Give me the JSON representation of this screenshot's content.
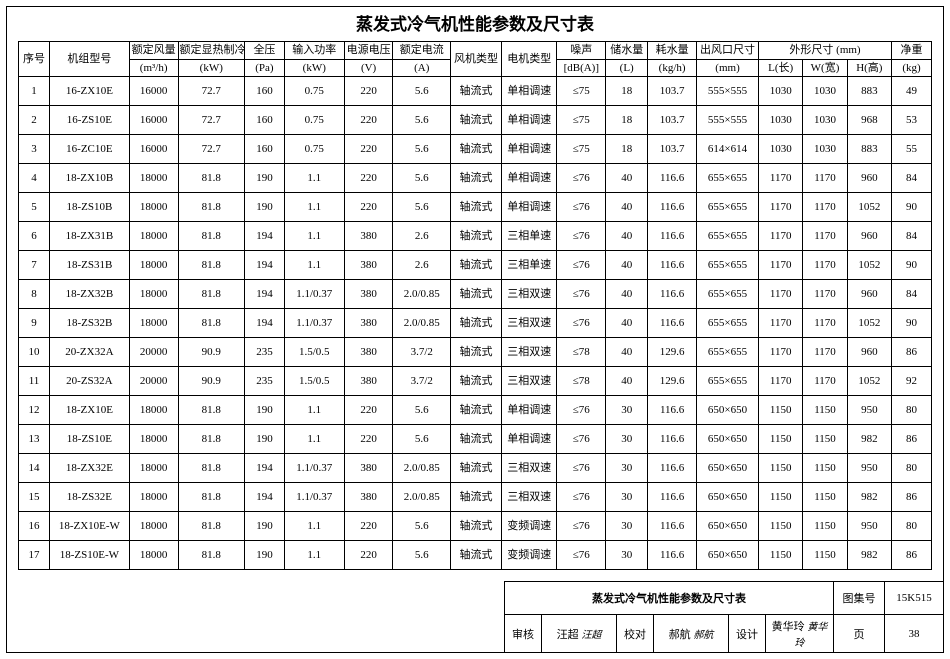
{
  "title": "蒸发式冷气机性能参数及尺寸表",
  "headers": {
    "seq": "序号",
    "model": "机组型号",
    "airflow": "额定风量",
    "airflow_unit": "(m³/h)",
    "cooling": "额定显热制冷量",
    "cooling_unit": "(kW)",
    "pressure": "全压",
    "pressure_unit": "(Pa)",
    "power": "输入功率",
    "power_unit": "(kW)",
    "voltage": "电源电压",
    "voltage_unit": "(V)",
    "current": "额定电流",
    "current_unit": "(A)",
    "fan_type": "风机类型",
    "motor_type": "电机类型",
    "noise": "噪声",
    "noise_unit": "[dB(A)]",
    "water_store": "储水量",
    "water_store_unit": "(L)",
    "water_use": "耗水量",
    "water_use_unit": "(kg/h)",
    "outlet": "出风口尺寸",
    "outlet_unit": "(mm)",
    "dims": "外形尺寸 (mm)",
    "L": "L(长)",
    "W": "W(宽)",
    "H": "H(高)",
    "weight": "净重",
    "weight_unit": "(kg)"
  },
  "rows": [
    {
      "seq": "1",
      "model": "16-ZX10E",
      "airflow": "16000",
      "cooling": "72.7",
      "pressure": "160",
      "power": "0.75",
      "voltage": "220",
      "current": "5.6",
      "fan": "轴流式",
      "motor": "单相调速",
      "noise": "≤75",
      "wstore": "18",
      "wuse": "103.7",
      "outlet": "555×555",
      "L": "1030",
      "W": "1030",
      "H": "883",
      "wt": "49"
    },
    {
      "seq": "2",
      "model": "16-ZS10E",
      "airflow": "16000",
      "cooling": "72.7",
      "pressure": "160",
      "power": "0.75",
      "voltage": "220",
      "current": "5.6",
      "fan": "轴流式",
      "motor": "单相调速",
      "noise": "≤75",
      "wstore": "18",
      "wuse": "103.7",
      "outlet": "555×555",
      "L": "1030",
      "W": "1030",
      "H": "968",
      "wt": "53"
    },
    {
      "seq": "3",
      "model": "16-ZC10E",
      "airflow": "16000",
      "cooling": "72.7",
      "pressure": "160",
      "power": "0.75",
      "voltage": "220",
      "current": "5.6",
      "fan": "轴流式",
      "motor": "单相调速",
      "noise": "≤75",
      "wstore": "18",
      "wuse": "103.7",
      "outlet": "614×614",
      "L": "1030",
      "W": "1030",
      "H": "883",
      "wt": "55"
    },
    {
      "seq": "4",
      "model": "18-ZX10B",
      "airflow": "18000",
      "cooling": "81.8",
      "pressure": "190",
      "power": "1.1",
      "voltage": "220",
      "current": "5.6",
      "fan": "轴流式",
      "motor": "单相调速",
      "noise": "≤76",
      "wstore": "40",
      "wuse": "116.6",
      "outlet": "655×655",
      "L": "1170",
      "W": "1170",
      "H": "960",
      "wt": "84"
    },
    {
      "seq": "5",
      "model": "18-ZS10B",
      "airflow": "18000",
      "cooling": "81.8",
      "pressure": "190",
      "power": "1.1",
      "voltage": "220",
      "current": "5.6",
      "fan": "轴流式",
      "motor": "单相调速",
      "noise": "≤76",
      "wstore": "40",
      "wuse": "116.6",
      "outlet": "655×655",
      "L": "1170",
      "W": "1170",
      "H": "1052",
      "wt": "90"
    },
    {
      "seq": "6",
      "model": "18-ZX31B",
      "airflow": "18000",
      "cooling": "81.8",
      "pressure": "194",
      "power": "1.1",
      "voltage": "380",
      "current": "2.6",
      "fan": "轴流式",
      "motor": "三相单速",
      "noise": "≤76",
      "wstore": "40",
      "wuse": "116.6",
      "outlet": "655×655",
      "L": "1170",
      "W": "1170",
      "H": "960",
      "wt": "84"
    },
    {
      "seq": "7",
      "model": "18-ZS31B",
      "airflow": "18000",
      "cooling": "81.8",
      "pressure": "194",
      "power": "1.1",
      "voltage": "380",
      "current": "2.6",
      "fan": "轴流式",
      "motor": "三相单速",
      "noise": "≤76",
      "wstore": "40",
      "wuse": "116.6",
      "outlet": "655×655",
      "L": "1170",
      "W": "1170",
      "H": "1052",
      "wt": "90"
    },
    {
      "seq": "8",
      "model": "18-ZX32B",
      "airflow": "18000",
      "cooling": "81.8",
      "pressure": "194",
      "power": "1.1/0.37",
      "voltage": "380",
      "current": "2.0/0.85",
      "fan": "轴流式",
      "motor": "三相双速",
      "noise": "≤76",
      "wstore": "40",
      "wuse": "116.6",
      "outlet": "655×655",
      "L": "1170",
      "W": "1170",
      "H": "960",
      "wt": "84"
    },
    {
      "seq": "9",
      "model": "18-ZS32B",
      "airflow": "18000",
      "cooling": "81.8",
      "pressure": "194",
      "power": "1.1/0.37",
      "voltage": "380",
      "current": "2.0/0.85",
      "fan": "轴流式",
      "motor": "三相双速",
      "noise": "≤76",
      "wstore": "40",
      "wuse": "116.6",
      "outlet": "655×655",
      "L": "1170",
      "W": "1170",
      "H": "1052",
      "wt": "90"
    },
    {
      "seq": "10",
      "model": "20-ZX32A",
      "airflow": "20000",
      "cooling": "90.9",
      "pressure": "235",
      "power": "1.5/0.5",
      "voltage": "380",
      "current": "3.7/2",
      "fan": "轴流式",
      "motor": "三相双速",
      "noise": "≤78",
      "wstore": "40",
      "wuse": "129.6",
      "outlet": "655×655",
      "L": "1170",
      "W": "1170",
      "H": "960",
      "wt": "86"
    },
    {
      "seq": "11",
      "model": "20-ZS32A",
      "airflow": "20000",
      "cooling": "90.9",
      "pressure": "235",
      "power": "1.5/0.5",
      "voltage": "380",
      "current": "3.7/2",
      "fan": "轴流式",
      "motor": "三相双速",
      "noise": "≤78",
      "wstore": "40",
      "wuse": "129.6",
      "outlet": "655×655",
      "L": "1170",
      "W": "1170",
      "H": "1052",
      "wt": "92"
    },
    {
      "seq": "12",
      "model": "18-ZX10E",
      "airflow": "18000",
      "cooling": "81.8",
      "pressure": "190",
      "power": "1.1",
      "voltage": "220",
      "current": "5.6",
      "fan": "轴流式",
      "motor": "单相调速",
      "noise": "≤76",
      "wstore": "30",
      "wuse": "116.6",
      "outlet": "650×650",
      "L": "1150",
      "W": "1150",
      "H": "950",
      "wt": "80"
    },
    {
      "seq": "13",
      "model": "18-ZS10E",
      "airflow": "18000",
      "cooling": "81.8",
      "pressure": "190",
      "power": "1.1",
      "voltage": "220",
      "current": "5.6",
      "fan": "轴流式",
      "motor": "单相调速",
      "noise": "≤76",
      "wstore": "30",
      "wuse": "116.6",
      "outlet": "650×650",
      "L": "1150",
      "W": "1150",
      "H": "982",
      "wt": "86"
    },
    {
      "seq": "14",
      "model": "18-ZX32E",
      "airflow": "18000",
      "cooling": "81.8",
      "pressure": "194",
      "power": "1.1/0.37",
      "voltage": "380",
      "current": "2.0/0.85",
      "fan": "轴流式",
      "motor": "三相双速",
      "noise": "≤76",
      "wstore": "30",
      "wuse": "116.6",
      "outlet": "650×650",
      "L": "1150",
      "W": "1150",
      "H": "950",
      "wt": "80"
    },
    {
      "seq": "15",
      "model": "18-ZS32E",
      "airflow": "18000",
      "cooling": "81.8",
      "pressure": "194",
      "power": "1.1/0.37",
      "voltage": "380",
      "current": "2.0/0.85",
      "fan": "轴流式",
      "motor": "三相双速",
      "noise": "≤76",
      "wstore": "30",
      "wuse": "116.6",
      "outlet": "650×650",
      "L": "1150",
      "W": "1150",
      "H": "982",
      "wt": "86"
    },
    {
      "seq": "16",
      "model": "18-ZX10E-W",
      "airflow": "18000",
      "cooling": "81.8",
      "pressure": "190",
      "power": "1.1",
      "voltage": "220",
      "current": "5.6",
      "fan": "轴流式",
      "motor": "变频调速",
      "noise": "≤76",
      "wstore": "30",
      "wuse": "116.6",
      "outlet": "650×650",
      "L": "1150",
      "W": "1150",
      "H": "950",
      "wt": "80"
    },
    {
      "seq": "17",
      "model": "18-ZS10E-W",
      "airflow": "18000",
      "cooling": "81.8",
      "pressure": "190",
      "power": "1.1",
      "voltage": "220",
      "current": "5.6",
      "fan": "轴流式",
      "motor": "变频调速",
      "noise": "≤76",
      "wstore": "30",
      "wuse": "116.6",
      "outlet": "650×650",
      "L": "1150",
      "W": "1150",
      "H": "982",
      "wt": "86"
    }
  ],
  "footer": {
    "title": "蒸发式冷气机性能参数及尺寸表",
    "atlas_label": "图集号",
    "atlas_val": "15K515",
    "review_label": "审核",
    "review_name": "汪超",
    "review_sig": "汪超",
    "check_label": "校对",
    "check_name": "郝航",
    "check_sig": "郝航",
    "design_label": "设计",
    "design_name": "黄华玲",
    "design_sig": "黄华玲",
    "page_label": "页",
    "page_val": "38"
  }
}
